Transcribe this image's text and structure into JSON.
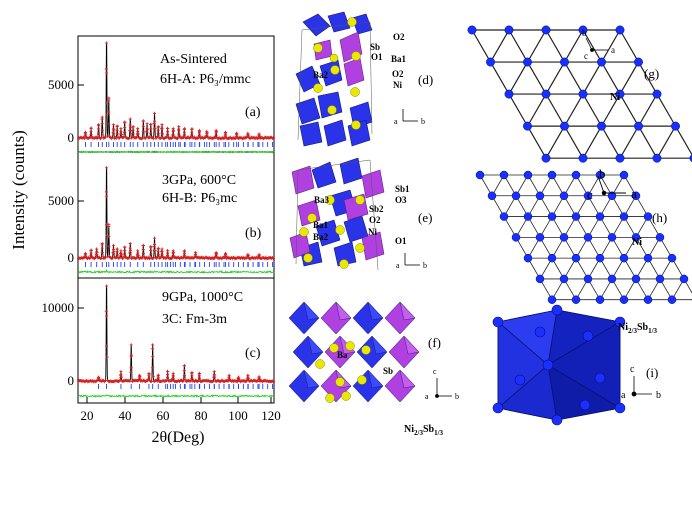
{
  "figure": {
    "ylabel": "Intensity (counts)",
    "xlabel": "2θ(Deg)",
    "xticks": [
      "20",
      "40",
      "60",
      "80",
      "100",
      "120"
    ]
  },
  "panels": {
    "a": {
      "line1": "As-Sintered",
      "line2": "6H-A: P6₃/mmc",
      "tag": "(a)",
      "yticks": [
        "0",
        "5000"
      ]
    },
    "b": {
      "line1": "3GPa, 600°C",
      "line2": "6H-B: P6₃mc",
      "tag": "(b)",
      "yticks": [
        "0",
        "5000"
      ]
    },
    "c": {
      "line1": "9GPa, 1000°C",
      "line2": "3C: Fm-3m",
      "tag": "(c)",
      "yticks": [
        "0",
        "10000"
      ]
    },
    "d": {
      "tag": "(d)",
      "labels": [
        "Sb",
        "O1",
        "O2",
        "Ba1",
        "Ba2",
        "O2",
        "Ni"
      ],
      "axes": [
        "a",
        "b"
      ]
    },
    "e": {
      "tag": "(e)",
      "labels": [
        "Sb1",
        "O3",
        "Ba3",
        "Sb2",
        "O2",
        "Ba1",
        "Ba2",
        "Ni",
        "O1"
      ],
      "axes": [
        "a",
        "b"
      ]
    },
    "f": {
      "tag": "(f)",
      "labels": [
        "Ba",
        "Sb",
        "Ni",
        "2/3",
        "Sb",
        "1/3"
      ],
      "axes": [
        "c",
        "a",
        "b"
      ]
    },
    "g": {
      "tag": "(g)",
      "atom": "Ni",
      "axes": [
        "b",
        "c",
        "a"
      ]
    },
    "h": {
      "tag": "(h)",
      "atom": "Ni",
      "axes": [
        "b",
        "c",
        "a"
      ]
    },
    "i": {
      "tag": "(i)",
      "labels": [
        "Ni",
        "2/3",
        "Sb",
        "1/3"
      ],
      "axes": [
        "c",
        "a",
        "b"
      ]
    }
  },
  "colors": {
    "observed": "#d62020",
    "calculated": "#000000",
    "bragg": "#2040ff",
    "difference": "#22cc22",
    "octahedron": "#2a33e8",
    "sb_octahedron": "#b040e0",
    "ba_atom": "#e8e800",
    "ni_atom": "#1530ff"
  }
}
